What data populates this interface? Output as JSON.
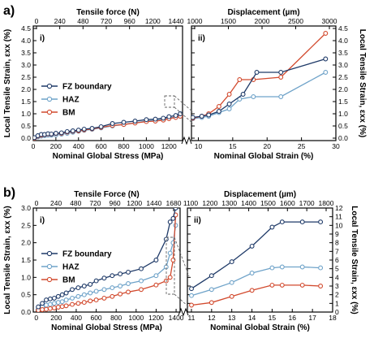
{
  "colors": {
    "fz": "#1f3a68",
    "haz": "#6fa3c9",
    "bm": "#d24a2e",
    "connector": "#666666"
  },
  "chart_data": [
    {
      "panel": "a) i)",
      "type": "line",
      "panel_letter": "a)",
      "index_label": "i)",
      "xlabel": "Nominal Global Stress (MPa)",
      "ylabel": "Local Tensile Strain, εxx (%)",
      "top_xlabel": "Tensile force (N)",
      "xlim": [
        0,
        1320
      ],
      "ylim": [
        -0.1,
        4.6
      ],
      "x_ticks": [
        0,
        200,
        400,
        600,
        800,
        1000,
        1200
      ],
      "y_ticks": [
        0.0,
        0.5,
        1.0,
        1.5,
        2.0,
        2.5,
        3.0,
        3.5,
        4.0,
        4.5
      ],
      "y_tick_labels": [
        "0.0",
        "0.5",
        "1.0",
        "1.5",
        "2.0",
        "2.5",
        "3.0",
        "3.5",
        "4.0",
        "4.5"
      ],
      "top_ticks": [
        "0",
        "240",
        "480",
        "720",
        "960",
        "1200",
        "1440"
      ],
      "legend": [
        "FZ boundary",
        "HAZ",
        "BM"
      ],
      "legend_position": "center-left",
      "series": [
        {
          "name": "FZ boundary",
          "x": [
            10,
            40,
            70,
            100,
            130,
            160,
            200,
            250,
            300,
            350,
            400,
            450,
            520,
            600,
            700,
            800,
            900,
            1000,
            1080,
            1150,
            1200,
            1260,
            1300
          ],
          "y": [
            0.02,
            0.1,
            0.15,
            0.15,
            0.18,
            0.17,
            0.2,
            0.22,
            0.27,
            0.3,
            0.33,
            0.37,
            0.4,
            0.47,
            0.6,
            0.65,
            0.7,
            0.76,
            0.78,
            0.82,
            0.88,
            0.93,
            1.0
          ]
        },
        {
          "name": "HAZ",
          "x": [
            10,
            40,
            70,
            100,
            130,
            160,
            200,
            250,
            300,
            350,
            400,
            450,
            520,
            600,
            700,
            800,
            900,
            1000,
            1080,
            1150,
            1200,
            1260,
            1300
          ],
          "y": [
            0.0,
            0.05,
            0.08,
            0.1,
            0.12,
            0.12,
            0.13,
            0.16,
            0.2,
            0.24,
            0.28,
            0.32,
            0.36,
            0.42,
            0.5,
            0.56,
            0.63,
            0.7,
            0.74,
            0.8,
            0.83,
            0.86,
            0.9
          ]
        },
        {
          "name": "BM",
          "x": [
            10,
            40,
            70,
            100,
            130,
            160,
            200,
            250,
            300,
            350,
            400,
            450,
            520,
            600,
            700,
            800,
            900,
            1000,
            1080,
            1150,
            1200,
            1260,
            1300
          ],
          "y": [
            0.0,
            0.08,
            0.12,
            0.14,
            0.17,
            0.16,
            0.19,
            0.2,
            0.25,
            0.28,
            0.3,
            0.34,
            0.38,
            0.44,
            0.52,
            0.56,
            0.62,
            0.68,
            0.7,
            0.74,
            0.8,
            0.85,
            0.9
          ]
        }
      ]
    },
    {
      "panel": "a) ii)",
      "type": "line",
      "index_label": "ii)",
      "xlabel": "Nominal Global Strain (%)",
      "ylabel": "Local Tensile Strain, εxx (%)",
      "top_xlabel": "Displacement (µm)",
      "xlim": [
        9,
        30
      ],
      "ylim": [
        -0.1,
        4.6
      ],
      "x_ticks": [
        10,
        15,
        20,
        25,
        30
      ],
      "y_ticks": [
        0.0,
        0.5,
        1.0,
        1.5,
        2.0,
        2.5,
        3.0,
        3.5,
        4.0,
        4.5
      ],
      "y_tick_labels": [
        "0.0",
        "0.5",
        "1.0",
        "1.5",
        "2.0",
        "2.5",
        "3.0",
        "3.5",
        "4.0",
        "4.5"
      ],
      "top_ticks": [
        "1000",
        "1500",
        "2000",
        "2500",
        "3000"
      ],
      "series": [
        {
          "name": "FZ boundary",
          "x": [
            9.2,
            10.5,
            11.5,
            13.0,
            14.5,
            16.5,
            18.5,
            22.0,
            28.5
          ],
          "y": [
            0.85,
            0.9,
            0.95,
            1.1,
            1.4,
            1.8,
            2.7,
            2.7,
            3.25
          ]
        },
        {
          "name": "HAZ",
          "x": [
            9.2,
            10.5,
            11.5,
            13.0,
            14.5,
            16.0,
            18.0,
            22.0,
            28.5
          ],
          "y": [
            0.8,
            0.85,
            0.9,
            1.05,
            1.2,
            1.6,
            1.7,
            1.7,
            2.7
          ]
        },
        {
          "name": "BM",
          "x": [
            9.2,
            10.5,
            11.5,
            13.0,
            14.5,
            16.0,
            18.0,
            22.0,
            28.5
          ],
          "y": [
            0.82,
            0.9,
            1.0,
            1.3,
            1.8,
            2.4,
            2.4,
            2.5,
            4.3
          ]
        }
      ]
    },
    {
      "panel": "b) i)",
      "type": "line",
      "panel_letter": "b)",
      "index_label": "i)",
      "xlabel": "Nominal Global Stress (MPa)",
      "ylabel": "Local Tensile Strain, εxx (%)",
      "top_xlabel": "Tensile Force (N)",
      "xlim": [
        -30,
        1440
      ],
      "ylim": [
        0.0,
        3.0
      ],
      "x_ticks": [
        0,
        200,
        400,
        600,
        800,
        1000,
        1200,
        1400
      ],
      "y_ticks": [
        0.0,
        0.5,
        1.0,
        1.5,
        2.0,
        2.5,
        3.0
      ],
      "y_tick_labels": [
        "0.0",
        "0.5",
        "1.0",
        "1.5",
        "2.0",
        "2.5",
        "3.0"
      ],
      "top_ticks": [
        "0",
        "240",
        "480",
        "720",
        "960",
        "1200",
        "1440",
        "1680"
      ],
      "legend": [
        "FZ boundary",
        "HAZ",
        "BM"
      ],
      "legend_position": "center-left",
      "series": [
        {
          "name": "FZ boundary",
          "x": [
            20,
            60,
            100,
            140,
            180,
            220,
            260,
            300,
            360,
            420,
            480,
            540,
            600,
            680,
            760,
            840,
            920,
            1050,
            1200,
            1300,
            1340,
            1370,
            1395
          ],
          "y": [
            0.15,
            0.25,
            0.35,
            0.38,
            0.4,
            0.45,
            0.5,
            0.55,
            0.65,
            0.7,
            0.75,
            0.8,
            0.9,
            0.98,
            1.05,
            1.1,
            1.15,
            1.25,
            1.5,
            2.1,
            2.6,
            2.7,
            3.0
          ]
        },
        {
          "name": "HAZ",
          "x": [
            20,
            60,
            100,
            140,
            180,
            220,
            260,
            300,
            360,
            420,
            480,
            540,
            600,
            680,
            760,
            840,
            920,
            1050,
            1200,
            1300,
            1340,
            1370,
            1395
          ],
          "y": [
            0.1,
            0.15,
            0.2,
            0.22,
            0.25,
            0.28,
            0.3,
            0.35,
            0.4,
            0.45,
            0.5,
            0.55,
            0.6,
            0.65,
            0.7,
            0.75,
            0.82,
            0.9,
            1.05,
            1.3,
            1.7,
            2.0,
            2.5
          ]
        },
        {
          "name": "BM",
          "x": [
            20,
            60,
            100,
            140,
            180,
            220,
            260,
            300,
            360,
            420,
            480,
            540,
            600,
            680,
            760,
            840,
            920,
            1050,
            1200,
            1300,
            1340,
            1370,
            1395
          ],
          "y": [
            0.05,
            0.07,
            0.08,
            0.1,
            0.12,
            0.14,
            0.16,
            0.18,
            0.22,
            0.25,
            0.28,
            0.32,
            0.35,
            0.4,
            0.45,
            0.52,
            0.58,
            0.65,
            0.78,
            0.9,
            1.0,
            1.5,
            2.8
          ]
        }
      ]
    },
    {
      "panel": "b) ii)",
      "type": "line",
      "index_label": "ii)",
      "xlabel": "Nominal Global Strain (%)",
      "ylabel": "Local Tensile Strain, εxx (%)",
      "top_xlabel": "Displacement (µm)",
      "xlim": [
        10.8,
        18
      ],
      "ylim": [
        0,
        12
      ],
      "x_ticks": [
        11,
        12,
        13,
        14,
        15,
        16,
        17,
        18
      ],
      "y_ticks": [
        0,
        1,
        2,
        3,
        4,
        5,
        6,
        7,
        8,
        9,
        10,
        11,
        12
      ],
      "y_tick_labels": [
        "0",
        "1",
        "2",
        "3",
        "4",
        "5",
        "6",
        "7",
        "8",
        "9",
        "10",
        "11",
        "12"
      ],
      "top_ticks": [
        "1100",
        "1200",
        "1300",
        "1400",
        "1500",
        "1600",
        "1700",
        "1800"
      ],
      "series": [
        {
          "name": "FZ boundary",
          "x": [
            11.0,
            12.0,
            13.0,
            14.0,
            15.0,
            15.5,
            16.5,
            17.4
          ],
          "y": [
            2.7,
            4.2,
            5.8,
            7.6,
            9.8,
            10.4,
            10.4,
            10.4
          ]
        },
        {
          "name": "HAZ",
          "x": [
            11.0,
            12.0,
            13.0,
            14.0,
            15.0,
            15.5,
            16.5,
            17.4
          ],
          "y": [
            1.9,
            2.6,
            3.4,
            4.5,
            5.1,
            5.2,
            5.2,
            5.1
          ]
        },
        {
          "name": "BM",
          "x": [
            11.0,
            12.0,
            13.0,
            14.0,
            15.0,
            15.5,
            16.5,
            17.4
          ],
          "y": [
            0.8,
            1.1,
            1.8,
            2.5,
            3.1,
            3.1,
            3.1,
            3.0
          ]
        }
      ]
    }
  ]
}
